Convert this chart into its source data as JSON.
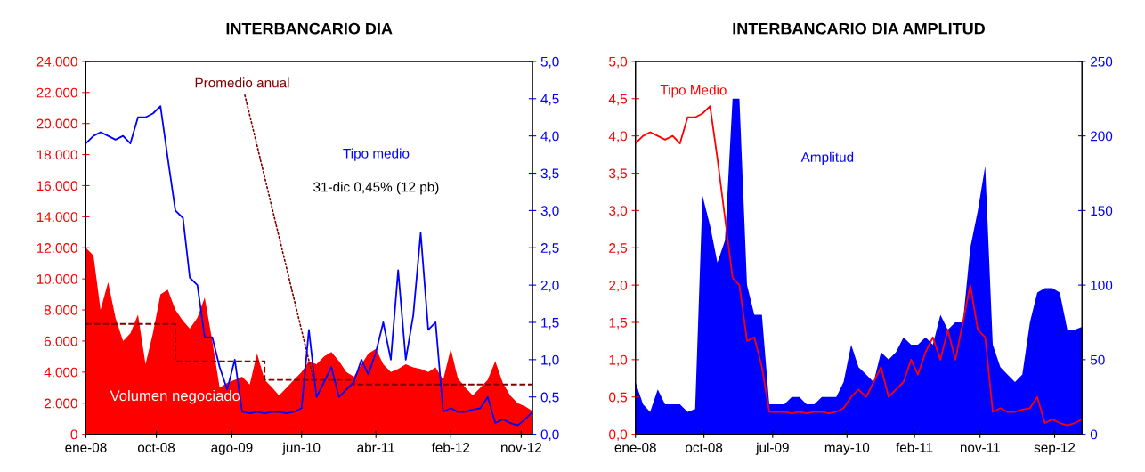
{
  "chart_data": [
    {
      "type": "area",
      "title": "INTERBANCARIO DIA",
      "xlim": [
        "2008-01-01",
        "2012-12-31"
      ],
      "xticks": [
        {
          "value": "2008-01-01",
          "label": "ene-08"
        },
        {
          "value": "2008-10-15",
          "label": "oct-08"
        },
        {
          "value": "2009-08-20",
          "label": "ago-09"
        },
        {
          "value": "2010-06-01",
          "label": "jun-10"
        },
        {
          "value": "2011-04-01",
          "label": "abr-11"
        },
        {
          "value": "2012-02-01",
          "label": "feb-12"
        },
        {
          "value": "2012-11-15",
          "label": "nov-12"
        }
      ],
      "ylim": [
        0,
        24000
      ],
      "yticks": [
        {
          "value": 0,
          "label": "0"
        },
        {
          "value": 2000,
          "label": "2.000"
        },
        {
          "value": 4000,
          "label": "4.000"
        },
        {
          "value": 6000,
          "label": "6.000"
        },
        {
          "value": 8000,
          "label": "8.000"
        },
        {
          "value": 10000,
          "label": "10.000"
        },
        {
          "value": 12000,
          "label": "12.000"
        },
        {
          "value": 14000,
          "label": "14.000"
        },
        {
          "value": 16000,
          "label": "16.000"
        },
        {
          "value": 18000,
          "label": "18.000"
        },
        {
          "value": 20000,
          "label": "20.000"
        },
        {
          "value": 22000,
          "label": "22.000"
        },
        {
          "value": 24000,
          "label": "24.000"
        }
      ],
      "y2lim": [
        0,
        5
      ],
      "y2ticks": [
        {
          "value": 0,
          "label": "0,0"
        },
        {
          "value": 0.5,
          "label": "0,5"
        },
        {
          "value": 1,
          "label": "1,0"
        },
        {
          "value": 1.5,
          "label": "1,5"
        },
        {
          "value": 2,
          "label": "2,0"
        },
        {
          "value": 2.5,
          "label": "2,5"
        },
        {
          "value": 3,
          "label": "3,0"
        },
        {
          "value": 3.5,
          "label": "3,5"
        },
        {
          "value": 4,
          "label": "4,0"
        },
        {
          "value": 4.5,
          "label": "4,5"
        },
        {
          "value": 5,
          "label": "5,0"
        }
      ],
      "x": [
        "2008-01-01",
        "2008-02-01",
        "2008-03-01",
        "2008-04-01",
        "2008-05-01",
        "2008-06-01",
        "2008-07-01",
        "2008-08-01",
        "2008-09-01",
        "2008-10-01",
        "2008-11-01",
        "2008-12-01",
        "2009-01-01",
        "2009-02-01",
        "2009-03-01",
        "2009-04-01",
        "2009-05-01",
        "2009-06-01",
        "2009-07-01",
        "2009-08-01",
        "2009-09-01",
        "2009-10-01",
        "2009-11-01",
        "2009-12-01",
        "2010-01-01",
        "2010-02-01",
        "2010-03-01",
        "2010-04-01",
        "2010-05-01",
        "2010-06-01",
        "2010-07-01",
        "2010-08-01",
        "2010-09-01",
        "2010-10-01",
        "2010-11-01",
        "2010-12-01",
        "2011-01-01",
        "2011-02-01",
        "2011-03-01",
        "2011-04-01",
        "2011-05-01",
        "2011-06-01",
        "2011-07-01",
        "2011-08-01",
        "2011-09-01",
        "2011-10-01",
        "2011-11-01",
        "2011-12-01",
        "2012-01-01",
        "2012-02-01",
        "2012-03-01",
        "2012-04-01",
        "2012-05-01",
        "2012-06-01",
        "2012-07-01",
        "2012-08-01",
        "2012-09-01",
        "2012-10-01",
        "2012-11-01",
        "2012-12-01",
        "2012-12-31"
      ],
      "series": [
        {
          "name": "Volumen negociado",
          "color": "#ff0000",
          "values": [
            12000,
            11500,
            8000,
            9800,
            7500,
            6000,
            6500,
            7700,
            4500,
            6500,
            9000,
            9300,
            8000,
            7300,
            6800,
            7500,
            8800,
            6000,
            3000,
            3300,
            3500,
            3700,
            3200,
            5200,
            3500,
            3000,
            2500,
            3000,
            3500,
            4000,
            4700,
            4500,
            5000,
            5300,
            4700,
            4000,
            3700,
            4500,
            5200,
            5500,
            4500,
            4000,
            4200,
            4500,
            4300,
            4200,
            4000,
            4300,
            3500,
            5500,
            3600,
            3000,
            2500,
            3000,
            3500,
            4700,
            3300,
            2500,
            2000,
            1800,
            1500
          ]
        },
        {
          "name": "Promedio anual",
          "type": "step",
          "line_style": "dashed",
          "color": "#800000",
          "x": [
            "2008-01-01",
            "2009-01-01",
            "2010-01-01",
            "2011-01-01",
            "2012-12-31"
          ],
          "values": [
            7100,
            4700,
            3500,
            3200,
            3200
          ]
        },
        {
          "name": "Tipo medio",
          "type": "line",
          "axis": "y2",
          "color": "#0000ff",
          "values": [
            3.9,
            4.0,
            4.05,
            4.0,
            3.95,
            4.0,
            3.9,
            4.25,
            4.25,
            4.3,
            4.4,
            3.7,
            3.0,
            2.9,
            2.1,
            2.0,
            1.3,
            1.3,
            0.9,
            0.6,
            1.0,
            0.3,
            0.28,
            0.3,
            0.28,
            0.3,
            0.3,
            0.28,
            0.3,
            0.35,
            1.4,
            0.5,
            0.7,
            0.9,
            0.5,
            0.6,
            0.7,
            1.0,
            0.8,
            1.1,
            1.5,
            1.0,
            2.2,
            1.0,
            1.6,
            2.7,
            1.4,
            1.5,
            0.3,
            0.35,
            0.3,
            0.3,
            0.33,
            0.35,
            0.5,
            0.15,
            0.2,
            0.15,
            0.12,
            0.2,
            0.3
          ]
        }
      ],
      "annotations": [
        {
          "text": "31-dic 0,45% (12 pb)"
        }
      ]
    },
    {
      "type": "area",
      "title": "INTERBANCARIO DIA AMPLITUD",
      "xlim": [
        "2008-01-01",
        "2012-12-31"
      ],
      "xticks": [
        {
          "value": "2008-01-01",
          "label": "ene-08"
        },
        {
          "value": "2008-10-07",
          "label": "oct-08"
        },
        {
          "value": "2009-07-15",
          "label": "jul-09"
        },
        {
          "value": "2010-05-15",
          "label": "may-10"
        },
        {
          "value": "2011-02-15",
          "label": "feb-11"
        },
        {
          "value": "2011-11-10",
          "label": "nov-11"
        },
        {
          "value": "2012-09-10",
          "label": "sep-12"
        }
      ],
      "ylim": [
        0,
        5
      ],
      "yticks": [
        {
          "value": 0,
          "label": "0,0"
        },
        {
          "value": 0.5,
          "label": "0,5"
        },
        {
          "value": 1,
          "label": "1,0"
        },
        {
          "value": 1.5,
          "label": "1,5"
        },
        {
          "value": 2,
          "label": "2,0"
        },
        {
          "value": 2.5,
          "label": "2,5"
        },
        {
          "value": 3,
          "label": "3,0"
        },
        {
          "value": 3.5,
          "label": "3,5"
        },
        {
          "value": 4,
          "label": "4,0"
        },
        {
          "value": 4.5,
          "label": "4,5"
        },
        {
          "value": 5,
          "label": "5,0"
        }
      ],
      "y2lim": [
        0,
        250
      ],
      "y2ticks": [
        0,
        50,
        100,
        150,
        200,
        250
      ],
      "x": [
        "2008-01-01",
        "2008-02-01",
        "2008-03-01",
        "2008-04-01",
        "2008-05-01",
        "2008-06-01",
        "2008-07-01",
        "2008-08-01",
        "2008-09-01",
        "2008-10-01",
        "2008-11-01",
        "2008-12-01",
        "2009-01-01",
        "2009-02-01",
        "2009-03-01",
        "2009-04-01",
        "2009-05-01",
        "2009-06-01",
        "2009-07-01",
        "2009-08-01",
        "2009-09-01",
        "2009-10-01",
        "2009-11-01",
        "2009-12-01",
        "2010-01-01",
        "2010-02-01",
        "2010-03-01",
        "2010-04-01",
        "2010-05-01",
        "2010-06-01",
        "2010-07-01",
        "2010-08-01",
        "2010-09-01",
        "2010-10-01",
        "2010-11-01",
        "2010-12-01",
        "2011-01-01",
        "2011-02-01",
        "2011-03-01",
        "2011-04-01",
        "2011-05-01",
        "2011-06-01",
        "2011-07-01",
        "2011-08-01",
        "2011-09-01",
        "2011-10-01",
        "2011-11-01",
        "2011-12-01",
        "2012-01-01",
        "2012-02-01",
        "2012-03-01",
        "2012-04-01",
        "2012-05-01",
        "2012-06-01",
        "2012-07-01",
        "2012-08-01",
        "2012-09-01",
        "2012-10-01",
        "2012-11-01",
        "2012-12-01",
        "2012-12-31"
      ],
      "series": [
        {
          "name": "Amplitud",
          "axis": "y2",
          "color": "#0000ff",
          "values": [
            35,
            20,
            15,
            30,
            20,
            20,
            20,
            15,
            17,
            160,
            140,
            115,
            130,
            225,
            225,
            100,
            80,
            80,
            20,
            20,
            20,
            25,
            25,
            20,
            20,
            25,
            25,
            25,
            35,
            60,
            45,
            40,
            35,
            55,
            50,
            55,
            65,
            60,
            60,
            65,
            60,
            80,
            70,
            75,
            75,
            125,
            150,
            180,
            60,
            45,
            40,
            35,
            40,
            75,
            95,
            98,
            98,
            95,
            70,
            70,
            72
          ]
        },
        {
          "name": "Tipo Medio",
          "type": "line",
          "color": "#ff0000",
          "values": [
            3.9,
            4.0,
            4.05,
            4.0,
            3.95,
            4.0,
            3.9,
            4.25,
            4.25,
            4.3,
            4.4,
            3.7,
            2.9,
            2.1,
            2.0,
            1.25,
            1.3,
            0.9,
            0.3,
            0.3,
            0.3,
            0.28,
            0.3,
            0.28,
            0.3,
            0.3,
            0.28,
            0.3,
            0.35,
            0.5,
            0.6,
            0.5,
            0.7,
            0.9,
            0.5,
            0.6,
            0.7,
            1.0,
            0.8,
            1.1,
            1.3,
            1.0,
            1.4,
            1.0,
            1.5,
            2.0,
            1.4,
            1.3,
            0.3,
            0.35,
            0.3,
            0.3,
            0.33,
            0.35,
            0.5,
            0.15,
            0.2,
            0.15,
            0.12,
            0.15,
            0.2
          ]
        }
      ]
    }
  ]
}
